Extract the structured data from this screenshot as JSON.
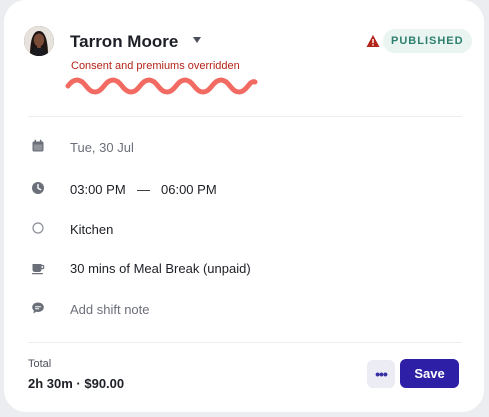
{
  "employee": {
    "name": "Tarron Moore",
    "status": "PUBLISHED",
    "warning_text": "Consent and premiums overridden"
  },
  "shift": {
    "date": "Tue, 30 Jul",
    "start_time": "03:00 PM",
    "end_time": "06:00 PM",
    "time_separator": "—",
    "location": "Kitchen",
    "break": "30 mins of Meal Break (unpaid)",
    "note_placeholder": "Add shift note"
  },
  "footer": {
    "total_label": "Total",
    "total_value": "2h 30m · $90.00",
    "more_label": "•••",
    "save_label": "Save"
  },
  "icons": {
    "date": "calendar-icon",
    "time": "clock-icon",
    "location": "location-circle-icon",
    "break": "coffee-cup-icon",
    "note": "chat-bubble-icon",
    "warning": "warning-triangle-icon"
  },
  "colors": {
    "primary": "#2d1fa6",
    "warning": "#b42318",
    "published_bg": "#eaf5f2",
    "published_text": "#2f7f6e",
    "squiggle": "#f26b63"
  }
}
